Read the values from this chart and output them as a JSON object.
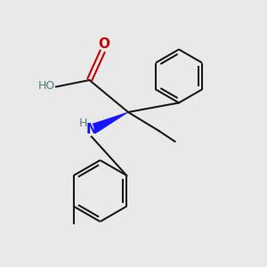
{
  "background_color": "#e9e9e9",
  "bond_color": "#1a1a1a",
  "N_color": "#1414ff",
  "O_color": "#cc0000",
  "HO_color": "#4a8080",
  "H_color": "#4a8080",
  "line_width": 1.5,
  "figsize": [
    3.0,
    3.0
  ],
  "dpi": 100,
  "xlim": [
    0,
    10
  ],
  "ylim": [
    0,
    10
  ]
}
